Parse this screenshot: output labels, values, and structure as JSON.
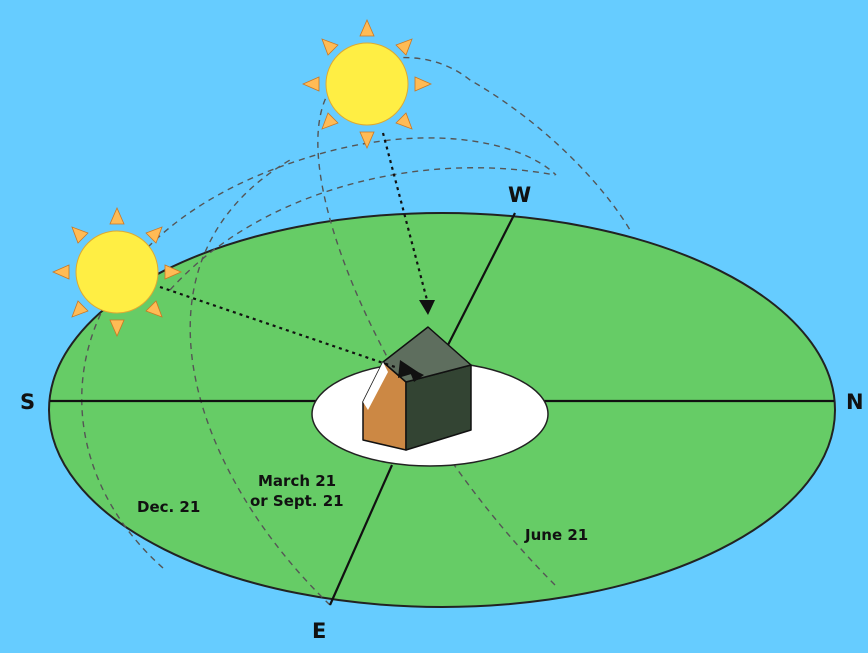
{
  "colors": {
    "sky": "#66ccff",
    "ground": "#66cc66",
    "house_site": "#ffffff",
    "sun": "#ffee44",
    "sun_rays": "#ffbb55",
    "roof": "#445544",
    "wall_front": "#cc8844"
  },
  "compass": {
    "south": "S",
    "north": "N",
    "east": "E",
    "west": "W"
  },
  "paths": {
    "december": "Dec. 21",
    "equinox_line1": "March 21",
    "equinox_line2": "or Sept. 21",
    "june": "June 21"
  }
}
